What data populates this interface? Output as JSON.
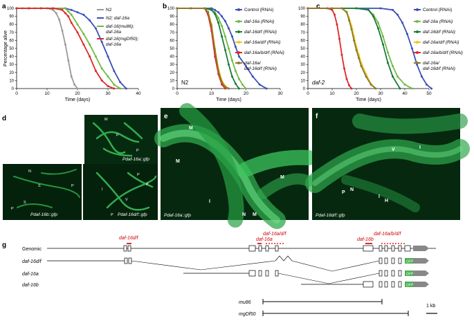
{
  "panels": {
    "a": "a",
    "b": "b",
    "c": "c",
    "d": "d",
    "e": "e",
    "f": "f",
    "g": "g"
  },
  "axes": {
    "ylabel": "Percentage alive",
    "xlabel": "Time (days)"
  },
  "chart_data": [
    {
      "panel": "a",
      "type": "line",
      "xlim": [
        0,
        40
      ],
      "ylim": [
        0,
        100
      ],
      "xticks": [
        0,
        10,
        20,
        30,
        40
      ],
      "yticks": [
        0,
        10,
        20,
        30,
        40,
        50,
        60,
        70,
        80,
        90,
        100
      ],
      "xlabel": "Time (days)",
      "ylabel": "Percentage alive",
      "legend_position": "right",
      "series": [
        {
          "name": "N2",
          "color": "#9a9a9a",
          "x": [
            0,
            2,
            4,
            6,
            8,
            10,
            12,
            13,
            14,
            15,
            16,
            17,
            18,
            19,
            20
          ],
          "y": [
            100,
            100,
            100,
            100,
            100,
            100,
            98,
            94,
            86,
            72,
            55,
            35,
            15,
            5,
            0
          ]
        },
        {
          "name": "N2; daf-16a",
          "color": "#3a4fb5",
          "x": [
            0,
            4,
            8,
            12,
            16,
            18,
            20,
            22,
            24,
            26,
            28,
            30,
            32,
            34,
            36
          ],
          "y": [
            100,
            100,
            100,
            100,
            100,
            98,
            95,
            92,
            85,
            75,
            58,
            40,
            22,
            8,
            0
          ]
        },
        {
          "name": "daf-16(mu86); daf-16a",
          "color": "#71b944",
          "x": [
            0,
            4,
            8,
            12,
            16,
            17,
            18,
            20,
            22,
            24,
            26,
            28,
            30,
            32,
            34
          ],
          "y": [
            100,
            100,
            100,
            100,
            100,
            96,
            92,
            80,
            68,
            55,
            40,
            25,
            15,
            5,
            0
          ]
        },
        {
          "name": "daf-16(mgDf50); daf-16a",
          "color": "#e02727",
          "x": [
            0,
            4,
            8,
            12,
            15,
            16,
            17,
            18,
            20,
            22,
            24,
            26,
            28,
            30,
            32
          ],
          "y": [
            100,
            100,
            100,
            100,
            98,
            94,
            90,
            82,
            70,
            55,
            40,
            22,
            10,
            3,
            0
          ]
        }
      ]
    },
    {
      "panel": "b",
      "type": "line",
      "xlim": [
        0,
        30
      ],
      "ylim": [
        0,
        100
      ],
      "xticks": [
        0,
        10,
        20,
        30
      ],
      "yticks": [
        0,
        10,
        20,
        30,
        40,
        50,
        60,
        70,
        80,
        90,
        100
      ],
      "xlabel": "Time (days)",
      "annotation": "N2",
      "legend_position": "right",
      "series": [
        {
          "name": "Control (RNAi)",
          "color": "#3a4fb5",
          "x": [
            0,
            4,
            8,
            10,
            11,
            12,
            13,
            14,
            15,
            16,
            17,
            18,
            20,
            22,
            24,
            26
          ],
          "y": [
            100,
            100,
            100,
            100,
            98,
            95,
            90,
            84,
            75,
            65,
            52,
            40,
            28,
            15,
            5,
            0
          ]
        },
        {
          "name": "daf-16a (RNAi)",
          "color": "#71b944",
          "x": [
            0,
            4,
            8,
            10,
            11,
            12,
            13,
            14,
            15,
            16,
            17,
            18,
            19,
            20
          ],
          "y": [
            100,
            100,
            100,
            98,
            95,
            88,
            78,
            65,
            50,
            35,
            22,
            12,
            5,
            0
          ]
        },
        {
          "name": "daf-16d/f (RNAi)",
          "color": "#1a7a3a",
          "x": [
            0,
            4,
            8,
            10,
            11,
            12,
            13,
            14,
            15,
            16,
            17,
            18
          ],
          "y": [
            100,
            100,
            100,
            98,
            93,
            82,
            65,
            48,
            30,
            15,
            6,
            0
          ]
        },
        {
          "name": "daf-16a/d/f (RNAi)",
          "color": "#f0c419",
          "x": [
            0,
            4,
            8,
            9,
            10,
            11,
            12,
            13,
            14,
            15
          ],
          "y": [
            100,
            100,
            100,
            96,
            80,
            50,
            25,
            10,
            3,
            0
          ]
        },
        {
          "name": "daf-16a/b/d/f (RNAi)",
          "color": "#e02727",
          "x": [
            0,
            4,
            8,
            9,
            10,
            11,
            12,
            13,
            14
          ],
          "y": [
            100,
            100,
            100,
            92,
            72,
            40,
            18,
            5,
            0
          ]
        },
        {
          "name": "daf-16a/ daf-16d/f (RNAi)",
          "color": "#8a7a2a",
          "x": [
            0,
            4,
            8,
            9,
            10,
            11,
            12,
            13,
            14,
            15
          ],
          "y": [
            100,
            100,
            100,
            95,
            78,
            48,
            22,
            8,
            2,
            0
          ]
        }
      ]
    },
    {
      "panel": "c",
      "type": "line",
      "xlim": [
        0,
        50
      ],
      "ylim": [
        0,
        100
      ],
      "xticks": [
        0,
        10,
        20,
        30,
        40,
        50
      ],
      "yticks": [
        0,
        10,
        20,
        30,
        40,
        50,
        60,
        70,
        80,
        90,
        100
      ],
      "xlabel": "Time (days)",
      "annotation": "daf-2",
      "legend_position": "right",
      "series": [
        {
          "name": "Control (RNAi)",
          "color": "#3a4fb5",
          "x": [
            0,
            10,
            20,
            30,
            35,
            37,
            39,
            41,
            43,
            45,
            47,
            49,
            51
          ],
          "y": [
            100,
            100,
            100,
            100,
            98,
            92,
            82,
            68,
            50,
            30,
            15,
            5,
            0
          ]
        },
        {
          "name": "daf-16a (RNAi)",
          "color": "#71b944",
          "x": [
            0,
            10,
            20,
            25,
            27,
            29,
            31,
            33,
            35,
            37,
            40,
            43
          ],
          "y": [
            100,
            100,
            100,
            98,
            92,
            82,
            65,
            45,
            28,
            15,
            5,
            0
          ]
        },
        {
          "name": "daf-16d/f (RNAi)",
          "color": "#1a7a3a",
          "x": [
            0,
            10,
            20,
            25,
            27,
            29,
            31,
            33,
            35,
            38
          ],
          "y": [
            100,
            100,
            100,
            98,
            90,
            75,
            55,
            32,
            15,
            0
          ]
        },
        {
          "name": "daf-16a/d/f (RNAi)",
          "color": "#f0c419",
          "x": [
            0,
            10,
            14,
            16,
            17,
            18,
            19,
            20,
            21,
            22,
            24,
            26,
            28
          ],
          "y": [
            100,
            100,
            100,
            96,
            88,
            78,
            65,
            52,
            42,
            32,
            18,
            6,
            0
          ]
        },
        {
          "name": "daf-16a/b/d/f (RNAi)",
          "color": "#e02727",
          "x": [
            0,
            8,
            10,
            11,
            12,
            13,
            14,
            15,
            16,
            17,
            18
          ],
          "y": [
            100,
            100,
            98,
            92,
            80,
            62,
            42,
            25,
            12,
            4,
            0
          ]
        },
        {
          "name": "daf-16a/ daf-16d/f (RNAi)",
          "color": "#8a7a2a",
          "x": [
            0,
            10,
            14,
            16,
            17,
            18,
            19,
            20,
            21,
            22,
            24,
            26,
            28
          ],
          "y": [
            100,
            100,
            100,
            95,
            85,
            74,
            60,
            48,
            38,
            28,
            15,
            5,
            0
          ]
        }
      ]
    }
  ],
  "legend_a": [
    {
      "label": "N2",
      "italic": false
    },
    {
      "label": "N2; daf-16a",
      "italic": true
    },
    {
      "label": "daf-16(mu86);",
      "italic": true,
      "label2": "daf-16a"
    },
    {
      "label": "daf-16(mgDf50);",
      "italic": true,
      "label2": "daf-16a"
    }
  ],
  "legend_bc": [
    "Control (RNAi)",
    "daf-16a (RNAi)",
    "daf-16d/f (RNAi)",
    "daf-16a/d/f (RNAi)",
    "daf-16a/b/d/f (RNAi)",
    "daf-16a/",
    "daf-16d/f (RNAi)"
  ],
  "micro": {
    "d_top": "Pdaf-16a::gfp",
    "d_bl": "Pdaf-16b::gfp",
    "d_br": "Pdaf-16d/f::gfp",
    "e": "Pdaf-16a::gfp",
    "f": "Pdaf-16d/f::gfp",
    "letters": {
      "M": "M",
      "P": "P",
      "N": "N",
      "S": "S",
      "I": "I",
      "V": "V",
      "H": "H"
    }
  },
  "genes": {
    "genomic": "Genomic",
    "rows": [
      "daf-16d/f",
      "daf-16a",
      "daf-16b"
    ],
    "top_labels": [
      "daf-16d/f",
      "daf-16a/d/f",
      "daf-16a",
      "daf-16a/b/d/f",
      "daf-16b"
    ],
    "gfp": "GFP",
    "mu86": "mu86",
    "mgdf50": "mgDf50",
    "scale": "1 kb"
  }
}
